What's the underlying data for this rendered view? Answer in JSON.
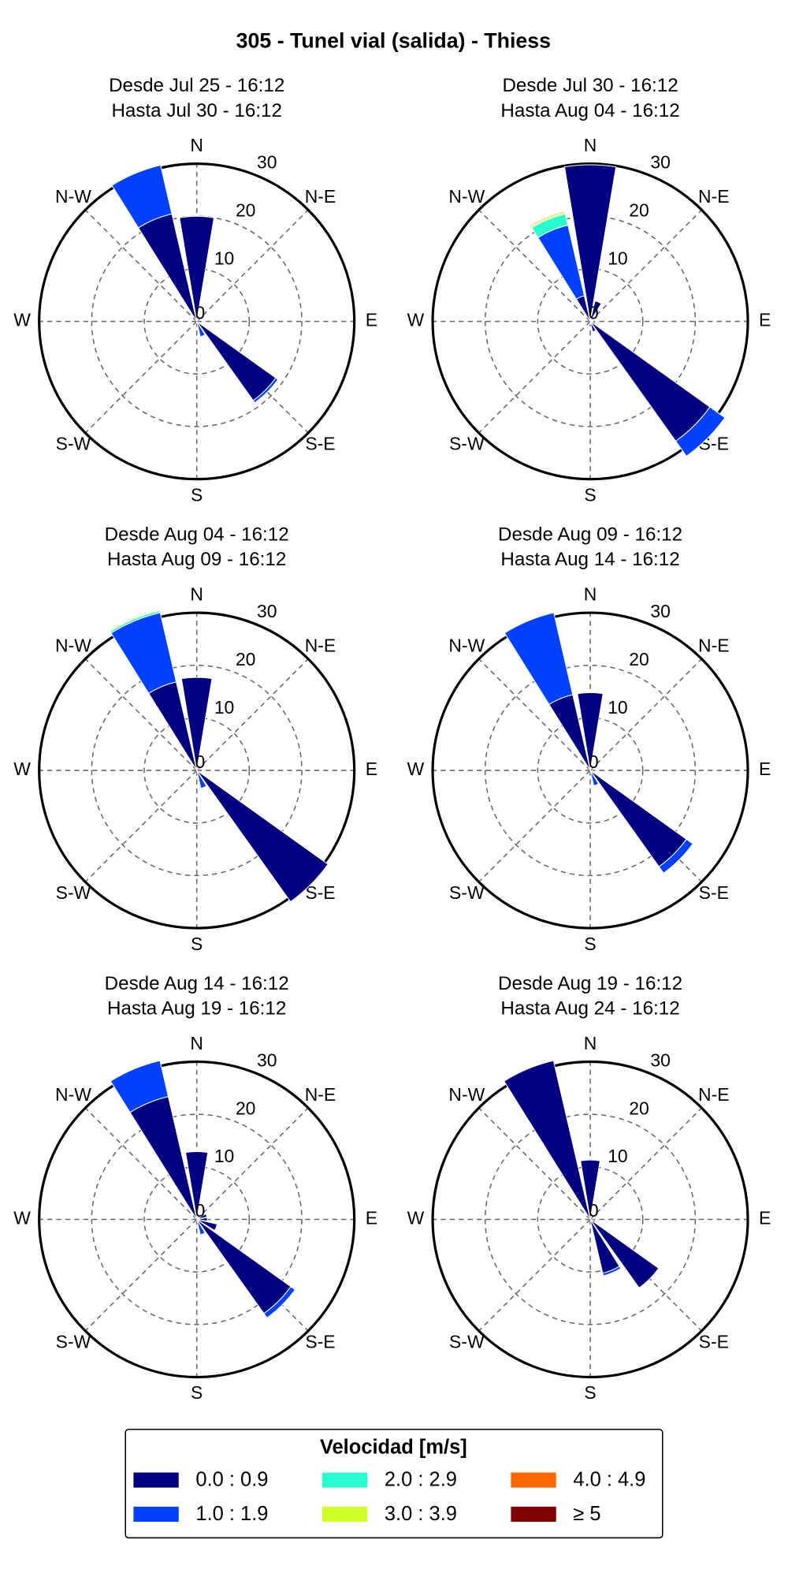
{
  "title": "305 - Tunel vial (salida) - Thiess",
  "direction_labels": [
    "N",
    "N-E",
    "E",
    "S-E",
    "S",
    "S-W",
    "W",
    "N-W"
  ],
  "rlim": [
    0,
    30
  ],
  "rticks": [
    0,
    10,
    20,
    30
  ],
  "legend": {
    "title": "Velocidad [m/s]",
    "entries": [
      {
        "name": "0.0 : 0.9",
        "color": "#000080"
      },
      {
        "name": "1.0 : 1.9",
        "color": "#0040ff"
      },
      {
        "name": "2.0 : 2.9",
        "color": "#29ffce"
      },
      {
        "name": "3.0 : 3.9",
        "color": "#ceff29"
      },
      {
        "name": "4.0 : 4.9",
        "color": "#ff6800"
      },
      {
        "name": "≥ 5",
        "color": "#800000"
      }
    ]
  },
  "chart_data": [
    {
      "type": "windrose",
      "title": "Desde Jul 25 - 16:12",
      "subtitle": "Hasta Jul 30 - 16:12",
      "series": [
        {
          "values": [
            20,
            0.5,
            0,
            0,
            0,
            0,
            18.5,
            0.5,
            0.3,
            0,
            0,
            0,
            0,
            0,
            0,
            21
          ]
        },
        {
          "values": [
            0,
            0,
            0,
            0,
            0,
            0,
            0.5,
            2.5,
            0,
            0,
            0,
            0,
            0,
            0,
            0,
            9.5
          ]
        },
        {
          "values": [
            0,
            0,
            0,
            0,
            0,
            0,
            0,
            0,
            0,
            0,
            0,
            0,
            0,
            0,
            0,
            0
          ]
        },
        {
          "values": [
            0,
            0,
            0,
            0,
            0,
            0,
            0,
            0,
            0,
            0,
            0,
            0,
            0,
            0,
            0,
            0
          ]
        },
        {
          "values": [
            0,
            0,
            0,
            0,
            0,
            0,
            0,
            0,
            0,
            0,
            0,
            0,
            0,
            0,
            0,
            0
          ]
        },
        {
          "values": [
            0,
            0,
            0,
            0,
            0,
            0,
            0,
            0,
            0,
            0,
            0,
            0,
            0,
            0,
            0,
            0
          ]
        }
      ]
    },
    {
      "type": "windrose",
      "title": "Desde Jul 30 - 16:12",
      "subtitle": "Hasta Aug 04 - 16:12",
      "series": [
        {
          "values": [
            29.8,
            4,
            1,
            0.5,
            0.5,
            1,
            28,
            2,
            0.5,
            0,
            0,
            0,
            0,
            0,
            0,
            5
          ]
        },
        {
          "values": [
            0,
            0,
            0,
            0,
            0,
            0,
            3.5,
            0,
            0,
            0,
            0,
            0,
            0,
            0,
            0,
            13.8
          ]
        },
        {
          "values": [
            0,
            0,
            0,
            0,
            0,
            0,
            0,
            0,
            0,
            0,
            0,
            0,
            0,
            0,
            0,
            2.2
          ]
        },
        {
          "values": [
            0,
            0,
            0,
            0,
            0,
            0,
            0,
            0,
            0,
            0,
            0,
            0,
            0,
            0,
            0,
            0.3
          ]
        },
        {
          "values": [
            0,
            0,
            0,
            0,
            0,
            0,
            0,
            0,
            0,
            0,
            0,
            0,
            0,
            0,
            0,
            0.2
          ]
        },
        {
          "values": [
            0,
            0,
            0,
            0,
            0,
            0,
            0,
            0,
            0,
            0,
            0,
            0,
            0,
            0,
            0,
            0
          ]
        }
      ]
    },
    {
      "type": "windrose",
      "title": "Desde Aug 04 - 16:12",
      "subtitle": "Hasta Aug 09 - 16:12",
      "series": [
        {
          "values": [
            17.7,
            0.5,
            0,
            0,
            0,
            0,
            30.7,
            0.5,
            0,
            0,
            0,
            0,
            0,
            0,
            0,
            17.3
          ]
        },
        {
          "values": [
            0,
            0,
            0,
            0,
            0,
            0,
            0,
            3,
            0,
            0,
            0,
            0,
            0,
            0,
            0,
            13.5
          ]
        },
        {
          "values": [
            0,
            0,
            0,
            0,
            0,
            0,
            0,
            0,
            0,
            0,
            0,
            0,
            0,
            0,
            0,
            0.4
          ]
        },
        {
          "values": [
            0,
            0,
            0,
            0,
            0,
            0,
            0,
            0,
            0,
            0,
            0,
            0,
            0,
            0,
            0,
            0.2
          ]
        },
        {
          "values": [
            0,
            0,
            0,
            0,
            0,
            0,
            0,
            0,
            0,
            0,
            0,
            0,
            0,
            0,
            0,
            0
          ]
        },
        {
          "values": [
            0,
            0,
            0,
            0,
            0,
            0,
            0,
            0,
            0,
            0,
            0,
            0,
            0,
            0,
            0,
            0
          ]
        }
      ]
    },
    {
      "type": "windrose",
      "title": "Desde Aug 09 - 16:12",
      "subtitle": "Hasta Aug 14 - 16:12",
      "series": [
        {
          "values": [
            14.8,
            0.5,
            0,
            0,
            0,
            0.5,
            22.5,
            0,
            0,
            0,
            0,
            0,
            0,
            0,
            0,
            14.8
          ]
        },
        {
          "values": [
            0,
            0,
            0,
            0,
            0,
            0,
            1.5,
            3,
            0,
            0,
            0,
            0,
            0,
            0,
            0,
            16
          ]
        },
        {
          "values": [
            0,
            0,
            0,
            0,
            0,
            0,
            0,
            0,
            0,
            0,
            0,
            0,
            0,
            0,
            0,
            0
          ]
        },
        {
          "values": [
            0,
            0,
            0,
            0,
            0,
            0,
            0,
            0,
            0,
            0,
            0,
            0,
            0,
            0,
            0,
            0
          ]
        },
        {
          "values": [
            0,
            0,
            0,
            0,
            0,
            0,
            0,
            0,
            0,
            0,
            0,
            0,
            0,
            0,
            0,
            0
          ]
        },
        {
          "values": [
            0,
            0,
            0,
            0,
            0,
            0,
            0,
            0,
            0,
            0,
            0,
            0,
            0,
            0,
            0,
            0
          ]
        }
      ]
    },
    {
      "type": "windrose",
      "title": "Desde Aug 14 - 16:12",
      "subtitle": "Hasta Aug 19 - 16:12",
      "series": [
        {
          "values": [
            12.9,
            1,
            0.5,
            2,
            2,
            4,
            22,
            0.5,
            0,
            0,
            0,
            0,
            0,
            0,
            0,
            24
          ]
        },
        {
          "values": [
            0,
            0,
            0,
            0,
            0,
            0,
            1,
            2.5,
            0,
            0,
            0,
            0,
            0,
            0,
            0,
            7
          ]
        },
        {
          "values": [
            0,
            0,
            0,
            0,
            0,
            0,
            0,
            0,
            0,
            0,
            0,
            0,
            0,
            0,
            0,
            0
          ]
        },
        {
          "values": [
            0,
            0,
            0,
            0,
            0,
            0,
            0,
            0,
            0,
            0,
            0,
            0,
            0,
            0,
            0,
            0
          ]
        },
        {
          "values": [
            0,
            0,
            0,
            0,
            0,
            0,
            0,
            0,
            0,
            0,
            0,
            0,
            0,
            0,
            0,
            0
          ]
        },
        {
          "values": [
            0,
            0,
            0,
            0,
            0,
            0,
            0,
            0,
            0,
            0,
            0,
            0,
            0,
            0,
            0,
            0
          ]
        }
      ]
    },
    {
      "type": "windrose",
      "title": "Desde Aug 19 - 16:12",
      "subtitle": "Hasta Aug 24 - 16:12",
      "series": [
        {
          "values": [
            11.3,
            0.5,
            0,
            0,
            0,
            1,
            16,
            10.5,
            0,
            0,
            0,
            0,
            0,
            0,
            0,
            31
          ]
        },
        {
          "values": [
            0,
            0,
            0,
            0,
            0,
            0,
            0,
            0.5,
            0,
            0,
            0,
            0,
            0,
            0,
            0,
            0
          ]
        },
        {
          "values": [
            0,
            0,
            0,
            0,
            0,
            0,
            0,
            0,
            0,
            0,
            0,
            0,
            0,
            0,
            0,
            0
          ]
        },
        {
          "values": [
            0,
            0,
            0,
            0,
            0,
            0,
            0,
            0,
            0,
            0,
            0,
            0,
            0,
            0,
            0,
            0
          ]
        },
        {
          "values": [
            0,
            0,
            0,
            0,
            0,
            0,
            0,
            0,
            0,
            0,
            0,
            0,
            0,
            0,
            0,
            0
          ]
        },
        {
          "values": [
            0,
            0,
            0,
            0,
            0,
            0,
            0,
            0,
            0,
            0,
            0,
            0,
            0,
            0,
            0,
            0
          ]
        }
      ]
    }
  ]
}
